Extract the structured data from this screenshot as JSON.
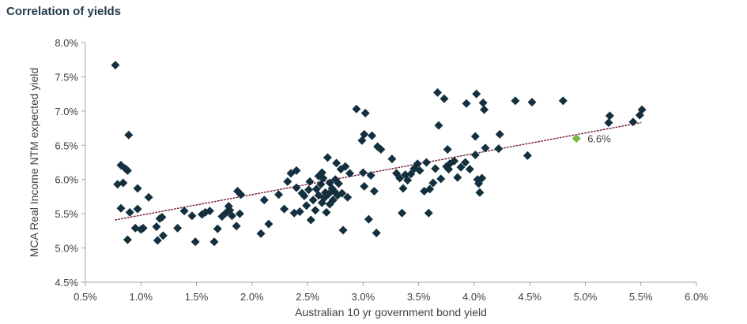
{
  "page": {
    "title": "Correlation of yields"
  },
  "colors": {
    "point": "#14303f",
    "highlight": "#7ab648",
    "trend": "#7a1f3d",
    "axis": "#a6a6a6",
    "text": "#404040"
  },
  "chart_data": {
    "type": "scatter",
    "title": "Correlation of yields",
    "xlabel": "Australian 10 yr government bond yield",
    "ylabel": "MCA Real Income NTM expected yield",
    "xlim": [
      0.5,
      6.0
    ],
    "ylim": [
      4.5,
      8.0
    ],
    "x_ticks": [
      "0.5%",
      "1.0%",
      "1.5%",
      "2.0%",
      "2.5%",
      "3.0%",
      "3.5%",
      "4.0%",
      "4.5%",
      "5.0%",
      "5.5%",
      "6.0%"
    ],
    "y_ticks": [
      "4.5%",
      "5.0%",
      "5.5%",
      "6.0%",
      "6.5%",
      "7.0%",
      "7.5%",
      "8.0%"
    ],
    "grid": false,
    "legend": "none",
    "marker": "diamond",
    "points": [
      [
        0.77,
        7.67
      ],
      [
        0.79,
        5.93
      ],
      [
        0.82,
        6.21
      ],
      [
        0.82,
        5.58
      ],
      [
        0.84,
        5.95
      ],
      [
        0.86,
        6.16
      ],
      [
        0.88,
        6.13
      ],
      [
        0.88,
        5.12
      ],
      [
        0.89,
        6.65
      ],
      [
        0.9,
        5.52
      ],
      [
        0.95,
        5.29
      ],
      [
        0.97,
        5.87
      ],
      [
        0.97,
        5.57
      ],
      [
        1.0,
        5.27
      ],
      [
        1.02,
        5.29
      ],
      [
        1.07,
        5.74
      ],
      [
        1.14,
        5.31
      ],
      [
        1.15,
        5.11
      ],
      [
        1.17,
        5.43
      ],
      [
        1.19,
        5.45
      ],
      [
        1.2,
        5.18
      ],
      [
        1.33,
        5.29
      ],
      [
        1.39,
        5.54
      ],
      [
        1.46,
        5.47
      ],
      [
        1.49,
        5.09
      ],
      [
        1.55,
        5.49
      ],
      [
        1.58,
        5.52
      ],
      [
        1.62,
        5.54
      ],
      [
        1.66,
        5.09
      ],
      [
        1.69,
        5.28
      ],
      [
        1.73,
        5.46
      ],
      [
        1.77,
        5.52
      ],
      [
        1.79,
        5.61
      ],
      [
        1.8,
        5.55
      ],
      [
        1.82,
        5.47
      ],
      [
        1.86,
        5.32
      ],
      [
        1.87,
        5.83
      ],
      [
        1.89,
        5.5
      ],
      [
        1.9,
        5.78
      ],
      [
        2.08,
        5.21
      ],
      [
        2.11,
        5.7
      ],
      [
        2.15,
        5.35
      ],
      [
        2.24,
        5.78
      ],
      [
        2.29,
        5.57
      ],
      [
        2.32,
        5.97
      ],
      [
        2.35,
        6.09
      ],
      [
        2.38,
        5.51
      ],
      [
        2.4,
        6.13
      ],
      [
        2.4,
        5.88
      ],
      [
        2.43,
        5.53
      ],
      [
        2.45,
        5.8
      ],
      [
        2.47,
        5.76
      ],
      [
        2.49,
        5.62
      ],
      [
        2.51,
        5.85
      ],
      [
        2.52,
        5.97
      ],
      [
        2.53,
        5.41
      ],
      [
        2.55,
        5.7
      ],
      [
        2.57,
        5.55
      ],
      [
        2.58,
        5.86
      ],
      [
        2.6,
        5.77
      ],
      [
        2.62,
        5.93
      ],
      [
        2.63,
        6.1
      ],
      [
        2.63,
        5.66
      ],
      [
        2.64,
        6.02
      ],
      [
        2.65,
        5.73
      ],
      [
        2.66,
        5.81
      ],
      [
        2.67,
        5.52
      ],
      [
        2.68,
        6.32
      ],
      [
        2.69,
        5.79
      ],
      [
        2.7,
        5.64
      ],
      [
        2.7,
        5.95
      ],
      [
        2.72,
        5.87
      ],
      [
        2.73,
        5.7
      ],
      [
        2.74,
        5.83
      ],
      [
        2.75,
        6.0
      ],
      [
        2.76,
        6.24
      ],
      [
        2.77,
        5.77
      ],
      [
        2.78,
        5.94
      ],
      [
        2.8,
        6.15
      ],
      [
        2.81,
        5.8
      ],
      [
        2.82,
        5.26
      ],
      [
        2.84,
        6.19
      ],
      [
        2.86,
        5.74
      ],
      [
        2.88,
        6.09
      ],
      [
        2.94,
        7.03
      ],
      [
        2.99,
        6.57
      ],
      [
        3.0,
        6.1
      ],
      [
        3.01,
        6.66
      ],
      [
        3.01,
        5.9
      ],
      [
        3.02,
        6.97
      ],
      [
        3.05,
        5.42
      ],
      [
        3.07,
        6.06
      ],
      [
        3.08,
        6.64
      ],
      [
        3.1,
        5.83
      ],
      [
        3.12,
        5.22
      ],
      [
        3.13,
        6.48
      ],
      [
        3.16,
        6.44
      ],
      [
        3.26,
        6.3
      ],
      [
        3.3,
        6.09
      ],
      [
        3.33,
        6.02
      ],
      [
        3.35,
        5.51
      ],
      [
        3.36,
        5.87
      ],
      [
        3.38,
        6.07
      ],
      [
        3.4,
        5.99
      ],
      [
        3.43,
        6.08
      ],
      [
        3.46,
        6.16
      ],
      [
        3.49,
        6.23
      ],
      [
        3.51,
        6.13
      ],
      [
        3.55,
        5.83
      ],
      [
        3.57,
        6.25
      ],
      [
        3.59,
        5.51
      ],
      [
        3.6,
        5.86
      ],
      [
        3.63,
        5.95
      ],
      [
        3.65,
        6.16
      ],
      [
        3.67,
        7.27
      ],
      [
        3.68,
        6.79
      ],
      [
        3.7,
        6.01
      ],
      [
        3.73,
        7.18
      ],
      [
        3.75,
        6.19
      ],
      [
        3.76,
        6.44
      ],
      [
        3.77,
        6.15
      ],
      [
        3.78,
        6.23
      ],
      [
        3.82,
        6.27
      ],
      [
        3.85,
        6.03
      ],
      [
        3.88,
        6.18
      ],
      [
        3.92,
        6.25
      ],
      [
        3.93,
        7.11
      ],
      [
        3.96,
        6.15
      ],
      [
        4.01,
        6.63
      ],
      [
        4.02,
        7.25
      ],
      [
        4.03,
        6.0
      ],
      [
        4.04,
        5.94
      ],
      [
        4.05,
        5.81
      ],
      [
        4.07,
        6.02
      ],
      [
        4.08,
        7.12
      ],
      [
        4.09,
        7.02
      ],
      [
        4.1,
        6.46
      ],
      [
        4.23,
        6.66
      ],
      [
        4.22,
        6.45
      ],
      [
        4.37,
        7.15
      ],
      [
        4.48,
        6.35
      ],
      [
        4.52,
        7.13
      ],
      [
        4.8,
        7.15
      ],
      [
        5.21,
        6.83
      ],
      [
        5.22,
        6.93
      ],
      [
        5.43,
        6.84
      ],
      [
        5.49,
        6.94
      ],
      [
        5.51,
        7.02
      ],
      [
        4.01,
        6.36
      ],
      [
        2.6,
        6.05
      ]
    ],
    "highlight": {
      "x": 4.92,
      "y": 6.6,
      "label": "6.6%"
    },
    "trendline": {
      "style": "dotted",
      "x": [
        0.77,
        5.5
      ],
      "y": [
        5.41,
        6.83
      ]
    }
  }
}
